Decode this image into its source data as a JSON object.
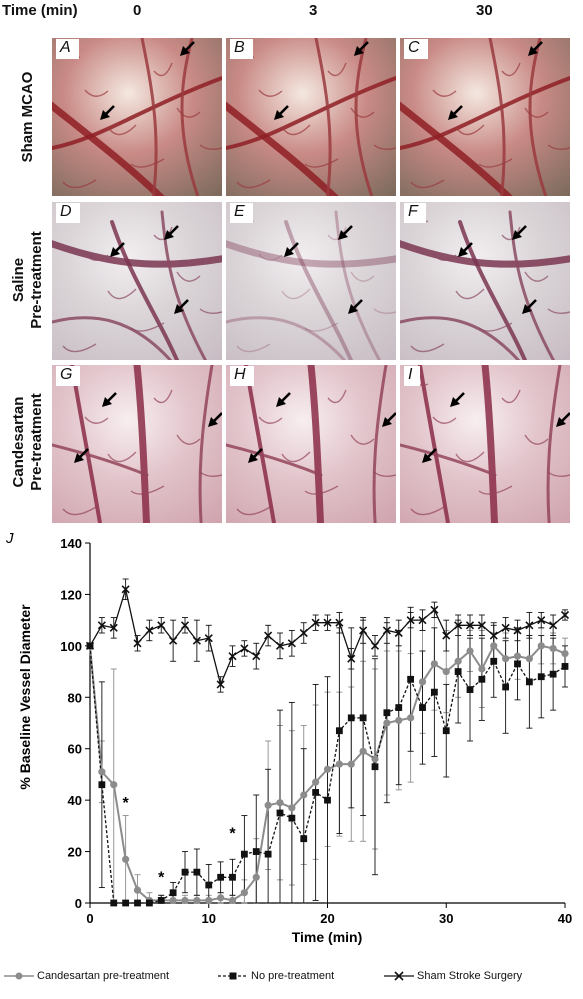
{
  "header": {
    "time_label": "Time (min)",
    "columns": [
      "0",
      "3",
      "30"
    ]
  },
  "rows": [
    {
      "label_lines": [
        "Sham MCAO"
      ],
      "letters": [
        "A",
        "B",
        "C"
      ],
      "tone": "red"
    },
    {
      "label_lines": [
        "Saline",
        "Pre-treatment"
      ],
      "letters": [
        "D",
        "E",
        "F"
      ],
      "tone": "pale"
    },
    {
      "label_lines": [
        "Candesartan",
        "Pre-treatment"
      ],
      "letters": [
        "G",
        "H",
        "I"
      ],
      "tone": "pink"
    }
  ],
  "colors": {
    "candesartan": "#8c8c8c",
    "no_pre": "#111111",
    "sham": "#111111"
  },
  "chart_data": {
    "type": "line",
    "panel_label": "J",
    "ylabel": "% Baseline Vessel Diameter",
    "xlabel": "Time (min)",
    "xlim": [
      0,
      40
    ],
    "ylim": [
      0,
      140
    ],
    "x_ticks": [
      "0",
      "10",
      "20",
      "30",
      "40"
    ],
    "y_ticks": [
      "0",
      "20",
      "40",
      "60",
      "80",
      "100",
      "120",
      "140"
    ],
    "grid": false,
    "legend_position": "bottom",
    "series": [
      {
        "name": "Candesartan pre-treatment",
        "marker": "circle",
        "x": [
          0,
          1,
          2,
          3,
          4,
          5,
          6,
          7,
          8,
          9,
          10,
          11,
          12,
          13,
          14,
          15,
          16,
          17,
          18,
          19,
          20,
          21,
          22,
          23,
          24,
          25,
          26,
          27,
          28,
          29,
          30,
          31,
          32,
          33,
          34,
          35,
          36,
          37,
          38,
          39,
          40
        ],
        "y": [
          100,
          51,
          46,
          17,
          5,
          1,
          1,
          1,
          1,
          1,
          1,
          2,
          1,
          4,
          10,
          38,
          39,
          37,
          42,
          47,
          52,
          54,
          54,
          59,
          56,
          70,
          71,
          72,
          86,
          93,
          90,
          94,
          98,
          91,
          100,
          95,
          96,
          95,
          100,
          99,
          97
        ],
        "err": [
          0,
          12,
          45,
          17,
          6,
          3,
          2,
          2,
          2,
          2,
          2,
          2,
          2,
          5,
          15,
          25,
          30,
          30,
          27,
          30,
          30,
          28,
          30,
          35,
          35,
          28,
          27,
          25,
          20,
          18,
          16,
          14,
          8,
          15,
          5,
          10,
          9,
          9,
          7,
          6,
          6
        ]
      },
      {
        "name": "No pre-treatment",
        "marker": "square",
        "x": [
          0,
          1,
          2,
          3,
          4,
          5,
          6,
          7,
          8,
          9,
          10,
          11,
          12,
          13,
          14,
          15,
          16,
          17,
          18,
          19,
          20,
          21,
          22,
          23,
          24,
          25,
          26,
          27,
          28,
          29,
          30,
          31,
          32,
          33,
          34,
          35,
          36,
          37,
          38,
          39,
          40
        ],
        "y": [
          100,
          46,
          0,
          0,
          0,
          0,
          1,
          4,
          12,
          12,
          7,
          10,
          10,
          19,
          20,
          19,
          35,
          33,
          25,
          43,
          40,
          67,
          72,
          72,
          53,
          74,
          76,
          87,
          76,
          82,
          67,
          90,
          83,
          87,
          94,
          84,
          93,
          86,
          88,
          89,
          92
        ],
        "err": [
          0,
          40,
          0,
          0,
          0,
          0,
          2,
          4,
          8,
          9,
          8,
          6,
          7,
          15,
          22,
          33,
          40,
          45,
          35,
          42,
          48,
          40,
          35,
          38,
          42,
          35,
          30,
          28,
          22,
          25,
          18,
          20,
          20,
          16,
          14,
          18,
          14,
          18,
          16,
          14,
          8
        ]
      },
      {
        "name": "Sham Stroke Surgery",
        "marker": "x",
        "x": [
          0,
          1,
          2,
          3,
          4,
          5,
          6,
          7,
          8,
          9,
          10,
          11,
          12,
          13,
          14,
          15,
          16,
          17,
          18,
          19,
          20,
          21,
          22,
          23,
          24,
          25,
          26,
          27,
          28,
          29,
          30,
          31,
          32,
          33,
          34,
          35,
          36,
          37,
          38,
          39,
          40
        ],
        "y": [
          100,
          108,
          107,
          122,
          101,
          106,
          108,
          102,
          108,
          102,
          103,
          85,
          96,
          99,
          96,
          104,
          100,
          101,
          105,
          109,
          109,
          109,
          95,
          106,
          100,
          106,
          105,
          110,
          110,
          114,
          104,
          108,
          108,
          108,
          104,
          107,
          106,
          108,
          110,
          108,
          112
        ],
        "err": [
          0,
          3,
          4,
          4,
          3,
          4,
          3,
          8,
          3,
          8,
          5,
          3,
          4,
          3,
          5,
          4,
          5,
          5,
          4,
          3,
          3,
          4,
          4,
          5,
          4,
          5,
          5,
          3,
          4,
          3,
          6,
          4,
          4,
          4,
          5,
          4,
          4,
          5,
          3,
          4,
          2
        ]
      }
    ],
    "annotations": [
      {
        "text": "*",
        "x": 3,
        "y": 37
      },
      {
        "text": "*",
        "x": 6,
        "y": 8
      },
      {
        "text": "*",
        "x": 12,
        "y": 25
      }
    ]
  }
}
